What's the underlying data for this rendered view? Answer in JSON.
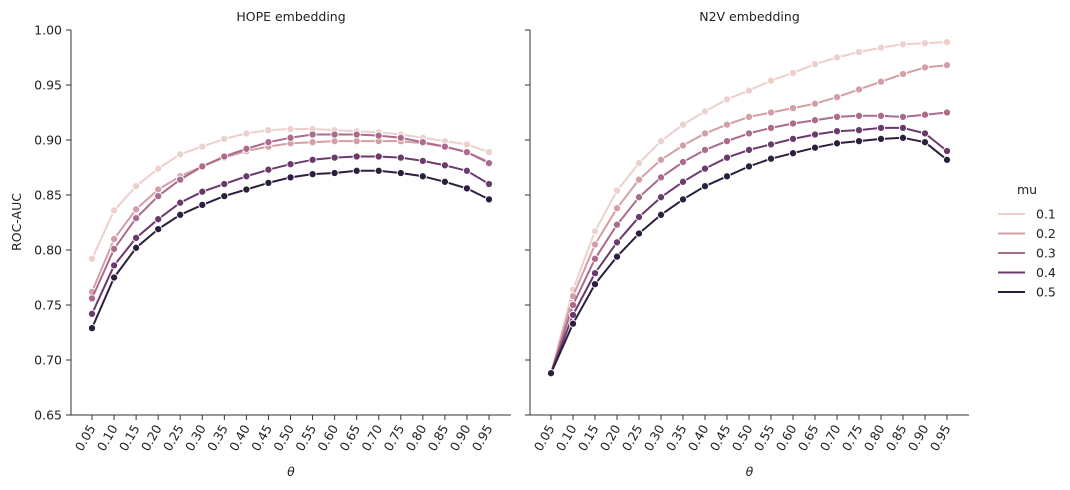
{
  "chart_data": {
    "type": "line",
    "shared_y_label": "ROC-AUC",
    "ylim": [
      0.65,
      1.0
    ],
    "yticks": [
      "0.65",
      "0.70",
      "0.75",
      "0.80",
      "0.85",
      "0.90",
      "0.95",
      "1.00"
    ],
    "x": [
      "0.05",
      "0.10",
      "0.15",
      "0.20",
      "0.25",
      "0.30",
      "0.35",
      "0.40",
      "0.45",
      "0.50",
      "0.55",
      "0.60",
      "0.65",
      "0.70",
      "0.75",
      "0.80",
      "0.85",
      "0.90",
      "0.95"
    ],
    "xlabel": "θ",
    "legend": {
      "title": "mu",
      "placement": "right"
    },
    "series_names": [
      "0.1",
      "0.2",
      "0.3",
      "0.4",
      "0.5"
    ],
    "colors": [
      "#ecd0cb",
      "#d39ea5",
      "#ac6a8c",
      "#6a3a6d",
      "#2c1e3d"
    ],
    "panels": [
      {
        "title": "HOPE embedding",
        "series": [
          {
            "name": "0.1",
            "values": [
              0.792,
              0.836,
              0.858,
              0.874,
              0.887,
              0.894,
              0.901,
              0.906,
              0.909,
              0.91,
              0.91,
              0.909,
              0.908,
              0.907,
              0.905,
              0.902,
              0.899,
              0.896,
              0.889
            ]
          },
          {
            "name": "0.2",
            "values": [
              0.762,
              0.81,
              0.837,
              0.855,
              0.867,
              0.876,
              0.884,
              0.89,
              0.894,
              0.897,
              0.898,
              0.899,
              0.899,
              0.899,
              0.899,
              0.897,
              0.894,
              0.889,
              0.88
            ]
          },
          {
            "name": "0.3",
            "values": [
              0.756,
              0.801,
              0.829,
              0.849,
              0.864,
              0.876,
              0.885,
              0.892,
              0.898,
              0.902,
              0.905,
              0.905,
              0.905,
              0.904,
              0.902,
              0.898,
              0.894,
              0.889,
              0.879
            ]
          },
          {
            "name": "0.4",
            "values": [
              0.742,
              0.786,
              0.811,
              0.828,
              0.843,
              0.853,
              0.86,
              0.867,
              0.873,
              0.878,
              0.882,
              0.884,
              0.885,
              0.885,
              0.884,
              0.881,
              0.877,
              0.872,
              0.86
            ]
          },
          {
            "name": "0.5",
            "values": [
              0.729,
              0.775,
              0.802,
              0.819,
              0.832,
              0.841,
              0.849,
              0.855,
              0.861,
              0.866,
              0.869,
              0.87,
              0.872,
              0.872,
              0.87,
              0.867,
              0.862,
              0.856,
              0.846
            ]
          }
        ]
      },
      {
        "title": "N2V embedding",
        "series": [
          {
            "name": "0.1",
            "values": [
              0.688,
              0.764,
              0.817,
              0.854,
              0.879,
              0.899,
              0.914,
              0.926,
              0.937,
              0.945,
              0.954,
              0.961,
              0.969,
              0.975,
              0.98,
              0.984,
              0.987,
              0.988,
              0.989
            ]
          },
          {
            "name": "0.2",
            "values": [
              0.688,
              0.758,
              0.805,
              0.838,
              0.864,
              0.882,
              0.895,
              0.906,
              0.914,
              0.921,
              0.925,
              0.929,
              0.933,
              0.939,
              0.946,
              0.953,
              0.96,
              0.966,
              0.968
            ]
          },
          {
            "name": "0.3",
            "values": [
              0.688,
              0.75,
              0.792,
              0.823,
              0.848,
              0.866,
              0.88,
              0.891,
              0.899,
              0.906,
              0.911,
              0.915,
              0.918,
              0.921,
              0.922,
              0.922,
              0.921,
              0.923,
              0.925
            ]
          },
          {
            "name": "0.4",
            "values": [
              0.688,
              0.741,
              0.779,
              0.807,
              0.83,
              0.848,
              0.862,
              0.874,
              0.884,
              0.891,
              0.896,
              0.901,
              0.905,
              0.908,
              0.909,
              0.911,
              0.911,
              0.906,
              0.89
            ]
          },
          {
            "name": "0.5",
            "values": [
              0.688,
              0.733,
              0.769,
              0.794,
              0.815,
              0.832,
              0.846,
              0.858,
              0.867,
              0.876,
              0.883,
              0.888,
              0.893,
              0.897,
              0.899,
              0.901,
              0.902,
              0.898,
              0.882
            ]
          }
        ]
      }
    ]
  }
}
